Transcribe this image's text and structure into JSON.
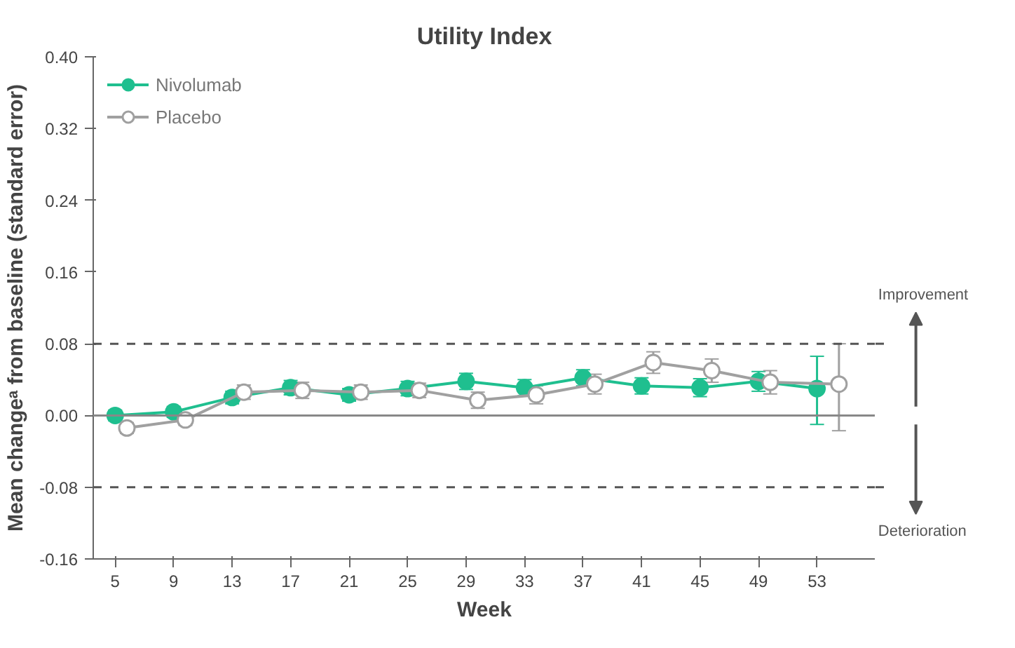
{
  "chart_data": {
    "type": "line",
    "title": "Utility Index",
    "xlabel": "Week",
    "ylabel": "Mean changeᵃ from baseline (standard error)",
    "xlim": [
      3.5,
      57
    ],
    "xticks": [
      5,
      9,
      13,
      17,
      21,
      25,
      29,
      33,
      37,
      41,
      45,
      49,
      53
    ],
    "ylim": [
      -0.16,
      0.4
    ],
    "yticks": [
      {
        "value": -0.16,
        "label": "-0.16"
      },
      {
        "value": -0.08,
        "label": "-0.08"
      },
      {
        "value": 0,
        "label": "0.00"
      },
      {
        "value": 0.08,
        "label": "0.08"
      },
      {
        "value": 0.16,
        "label": "0.16"
      },
      {
        "value": 0.24,
        "label": "0.24"
      },
      {
        "value": 0.32,
        "label": "0.32"
      },
      {
        "value": 0.4,
        "label": "0.40"
      }
    ],
    "series": [
      {
        "name": "Nivolumab",
        "color": "#1fbf8f",
        "x": [
          5,
          9,
          13,
          17,
          21,
          25,
          29,
          33,
          37,
          41,
          45,
          49,
          53
        ],
        "values": [
          0.0,
          0.004,
          0.02,
          0.031,
          0.023,
          0.03,
          0.038,
          0.031,
          0.042,
          0.033,
          0.031,
          0.038,
          0.03
        ],
        "errors": [
          0.006,
          0.006,
          0.007,
          0.008,
          0.007,
          0.008,
          0.009,
          0.009,
          0.009,
          0.009,
          0.01,
          0.011,
          [
            -0.01,
            0.066
          ]
        ]
      },
      {
        "name": "Placebo",
        "color": "#a0a0a0",
        "x": [
          5.8,
          9.8,
          13.8,
          17.8,
          21.8,
          25.8,
          29.8,
          33.8,
          37.8,
          41.8,
          45.8,
          49.8,
          54.5
        ],
        "values": [
          -0.014,
          -0.005,
          0.026,
          0.028,
          0.026,
          0.028,
          0.017,
          0.023,
          0.035,
          0.059,
          0.05,
          0.037,
          0.035
        ],
        "errors": [
          0.006,
          0.006,
          0.008,
          0.009,
          0.008,
          0.008,
          0.009,
          0.01,
          0.011,
          0.012,
          0.013,
          0.013,
          [
            -0.017,
            0.08
          ]
        ]
      }
    ],
    "ref_lines": [
      {
        "axis": "y",
        "value": 0.08,
        "label": null,
        "line_style": "dashed",
        "color": "#555555"
      },
      {
        "axis": "y",
        "value": -0.08,
        "label": null,
        "line_style": "dashed",
        "color": "#555555"
      },
      {
        "axis": "y",
        "value": 0,
        "label": null,
        "line_style": "solid",
        "color": "#888888"
      }
    ],
    "annotations": [
      "Improvement",
      "Deterioration"
    ],
    "grid": false,
    "legend": "top left",
    "marker": "circle",
    "line_style": "solid"
  }
}
